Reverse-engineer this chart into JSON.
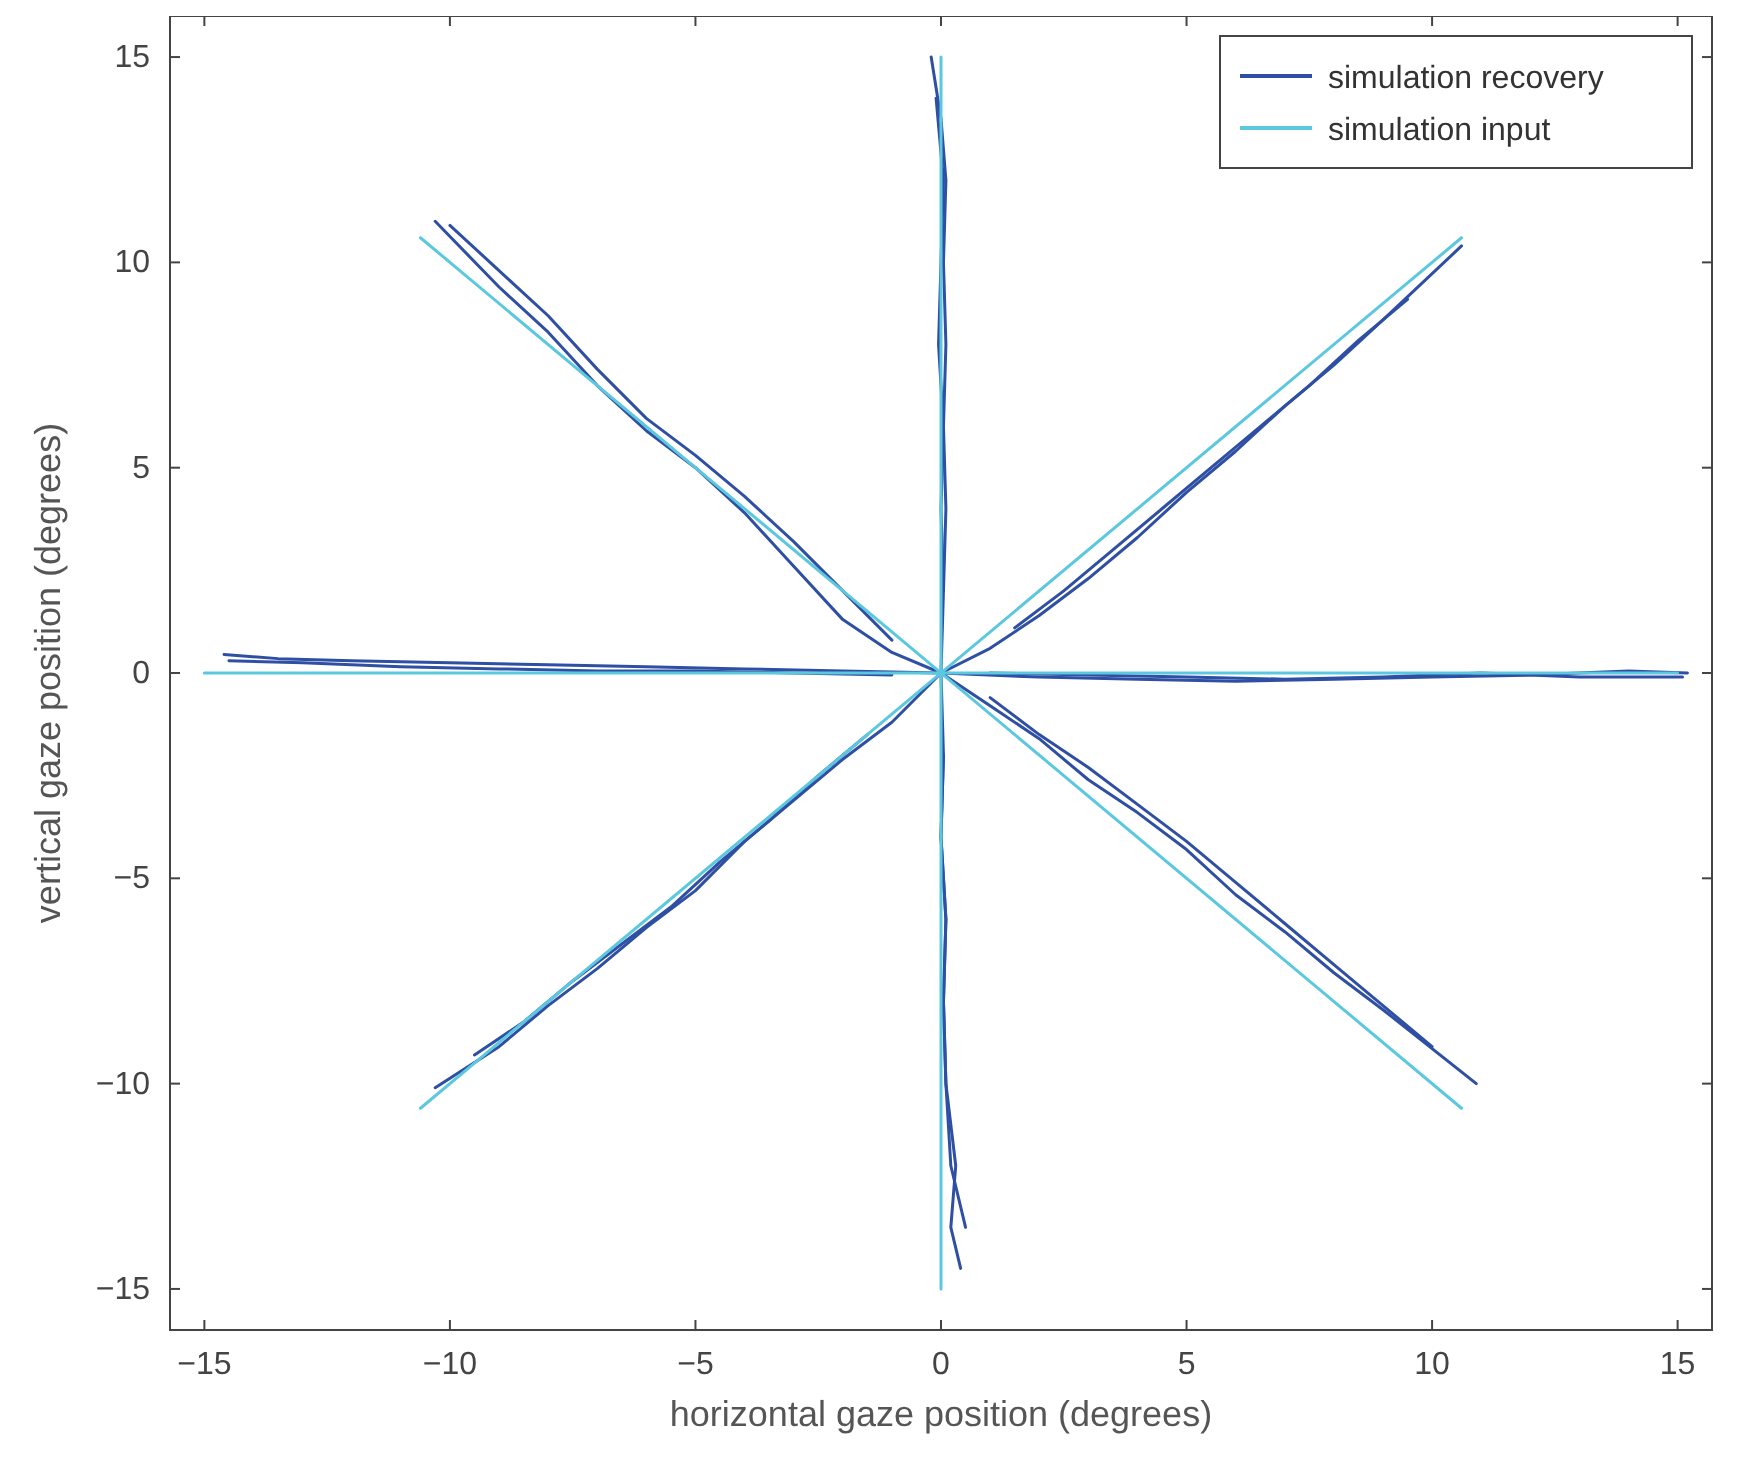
{
  "chart_data": {
    "type": "line",
    "xlabel": "horizontal gaze position (degrees)",
    "ylabel": "vertical gaze position (degrees)",
    "xlim": [
      -15.7,
      15.7
    ],
    "ylim": [
      -16,
      16
    ],
    "xticks": [
      -15,
      -10,
      -5,
      0,
      5,
      10,
      15
    ],
    "yticks": [
      -15,
      -10,
      -5,
      0,
      5,
      10,
      15
    ],
    "grid": false,
    "legend": "top right",
    "marker": "none",
    "line_style": "solid",
    "series": [
      {
        "name": "simulation recovery",
        "color": "#2e4fa3",
        "x": [
          -14.6,
          -13.5,
          -12,
          -10,
          -8,
          -6,
          -4,
          -2,
          0,
          2,
          4,
          6,
          8,
          10,
          12,
          14,
          15.2
        ],
        "values": [
          0.45,
          0.35,
          0.3,
          0.25,
          0.2,
          0.15,
          0.1,
          0.05,
          0,
          -0.1,
          -0.15,
          -0.2,
          -0.15,
          -0.1,
          -0.05,
          0.05,
          0
        ]
      },
      {
        "color": "#2e4fa3",
        "x": [
          -14.5,
          -13,
          -11,
          -9,
          -7,
          -5,
          -3,
          -1
        ],
        "values": [
          0.3,
          0.25,
          0.15,
          0.1,
          0.05,
          0.05,
          0,
          -0.05
        ]
      },
      {
        "color": "#2e4fa3",
        "x": [
          15.1,
          13,
          11,
          9,
          7,
          5,
          3,
          1
        ],
        "values": [
          -0.1,
          -0.1,
          0,
          -0.1,
          -0.15,
          -0.1,
          -0.05,
          0
        ]
      },
      {
        "color": "#2e4fa3",
        "x": [
          -0.2,
          0,
          0.1,
          0.05,
          0.1,
          0.05,
          0.1,
          0.05,
          0,
          0.05,
          0,
          0.1,
          0.05,
          0.1,
          0.3,
          0.2,
          0.4
        ],
        "values": [
          15,
          13.5,
          12,
          10,
          8,
          6,
          4,
          2,
          0,
          -2,
          -4,
          -6,
          -8,
          -10,
          -12,
          -13.5,
          -14.5
        ]
      },
      {
        "color": "#2e4fa3",
        "x": [
          -0.1,
          0.05,
          0,
          -0.05,
          0.05,
          0,
          0.05
        ],
        "values": [
          14,
          12,
          10,
          8,
          6,
          4,
          2
        ]
      },
      {
        "color": "#2e4fa3",
        "x": [
          0.5,
          0.2,
          0.1,
          0.05,
          0.1,
          0,
          0.05
        ],
        "values": [
          -13.5,
          -12,
          -10,
          -8,
          -6,
          -4,
          -2
        ]
      },
      {
        "color": "#2e4fa3",
        "x": [
          -10.3,
          -9,
          -8,
          -7,
          -6,
          -5,
          -4,
          -3,
          -2,
          -1,
          0,
          1,
          2,
          3,
          4,
          5,
          6,
          7,
          8,
          9,
          10.9
        ],
        "values": [
          11,
          9.4,
          8.3,
          7,
          5.9,
          5,
          3.9,
          2.6,
          1.3,
          0.5,
          0,
          -0.8,
          -1.6,
          -2.6,
          -3.4,
          -4.3,
          -5.4,
          -6.3,
          -7.3,
          -8.2,
          -10
        ]
      },
      {
        "color": "#2e4fa3",
        "x": [
          -10,
          -9,
          -8,
          -7,
          -6,
          -5,
          -4,
          -3,
          -2,
          -1
        ],
        "values": [
          10.9,
          9.8,
          8.7,
          7.4,
          6.2,
          5.3,
          4.3,
          3.2,
          2,
          0.8
        ]
      },
      {
        "color": "#2e4fa3",
        "x": [
          10,
          9,
          8,
          7,
          6,
          5,
          4,
          3,
          2,
          1
        ],
        "values": [
          -9.1,
          -8.1,
          -7.1,
          -6.1,
          -5.1,
          -4.1,
          -3.2,
          -2.3,
          -1.5,
          -0.6
        ]
      },
      {
        "color": "#2e4fa3",
        "x": [
          -10.3,
          -9,
          -8,
          -7,
          -6,
          -5,
          -4,
          -3,
          -2,
          -1,
          0,
          1,
          2,
          3,
          4,
          5,
          6,
          7,
          8,
          9,
          10.6
        ],
        "values": [
          -10.1,
          -9.1,
          -8.1,
          -7.2,
          -6.2,
          -5.3,
          -4.1,
          -3.1,
          -2.1,
          -1.2,
          0,
          0.6,
          1.4,
          2.3,
          3.3,
          4.4,
          5.4,
          6.5,
          7.5,
          8.6,
          10.4
        ]
      },
      {
        "color": "#2e4fa3",
        "x": [
          9.5,
          8.5,
          7.5,
          6.5,
          5.5,
          4.5,
          3.5,
          2.5,
          1.5
        ],
        "values": [
          9.1,
          8.1,
          7,
          6,
          5,
          4,
          3,
          2,
          1.1
        ]
      },
      {
        "color": "#2e4fa3",
        "x": [
          -9.5,
          -8.5,
          -7.5,
          -6.5,
          -5.5,
          -4.5,
          -3.5,
          -2.5,
          -1.5
        ],
        "values": [
          -9.3,
          -8.5,
          -7.5,
          -6.6,
          -5.7,
          -4.6,
          -3.6,
          -2.5,
          -1.5
        ]
      },
      {
        "name": "simulation input",
        "color": "#5bc8e0",
        "x": [
          -15,
          15
        ],
        "values": [
          0,
          0
        ]
      },
      {
        "color": "#5bc8e0",
        "x": [
          0,
          0
        ],
        "values": [
          -15,
          15
        ]
      },
      {
        "color": "#5bc8e0",
        "x": [
          -10.6,
          10.6
        ],
        "values": [
          10.6,
          -10.6
        ]
      },
      {
        "color": "#5bc8e0",
        "x": [
          -10.6,
          10.6
        ],
        "values": [
          -10.6,
          10.6
        ]
      }
    ]
  }
}
